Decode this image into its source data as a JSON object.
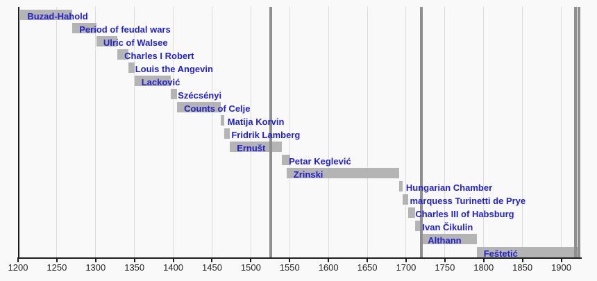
{
  "chart_data": {
    "type": "bar",
    "subtype": "horizontal-timeline-gantt",
    "title": "",
    "xlabel": "",
    "ylabel": "",
    "grid": true,
    "legend": "none",
    "axis": {
      "min": 1200,
      "max": 1925,
      "tick_step": 50,
      "tick_values": [
        1200,
        1250,
        1300,
        1350,
        1400,
        1450,
        1500,
        1550,
        1600,
        1650,
        1700,
        1750,
        1800,
        1850,
        1900
      ],
      "tick_labels": [
        "1200",
        "1250",
        "1300",
        "1350",
        "1400",
        "1450",
        "1500",
        "1550",
        "1600",
        "1650",
        "1700",
        "1750",
        "1800",
        "1850",
        "1900"
      ]
    },
    "rows": [
      {
        "label": "Buzad-Hahold",
        "from": 1203,
        "till": 1270
      },
      {
        "label": "Period of feudal wars",
        "from": 1270,
        "till": 1301
      },
      {
        "label": "Ulric of Walsee",
        "from": 1301,
        "till": 1328
      },
      {
        "label": "Charles I Robert",
        "from": 1328,
        "till": 1342
      },
      {
        "label": "Louis the Angevin",
        "from": 1342,
        "till": 1350
      },
      {
        "label": "Lacković",
        "from": 1350,
        "till": 1397
      },
      {
        "label": "Szécsényi",
        "from": 1397,
        "till": 1405
      },
      {
        "label": "Counts of Celje",
        "from": 1405,
        "till": 1461
      },
      {
        "label": "Matija Korvin",
        "from": 1461,
        "till": 1466
      },
      {
        "label": "Fridrik Lamberg",
        "from": 1466,
        "till": 1473
      },
      {
        "label": "Ernušt",
        "from": 1473,
        "till": 1540
      },
      {
        "label": "Petar Keglević",
        "from": 1540,
        "till": 1551
      },
      {
        "label": "Zrinski",
        "from": 1546,
        "till": 1691
      },
      {
        "label": "Hungarian Chamber",
        "from": 1691,
        "till": 1696
      },
      {
        "label": "marquess Turinetti de Prye",
        "from": 1696,
        "till": 1703
      },
      {
        "label": "Charles III of Habsburg",
        "from": 1703,
        "till": 1712
      },
      {
        "label": "Ivan Čikulin",
        "from": 1712,
        "till": 1719
      },
      {
        "label": "Althann",
        "from": 1719,
        "till": 1791
      },
      {
        "label": "Feštetić",
        "from": 1791,
        "till": 1923
      }
    ],
    "event_lines": [
      1526,
      1720,
      1918,
      1923
    ],
    "colors": {
      "background": "#f9f9f9",
      "bar": "#b4b4b4",
      "bar_label": "#2222cc",
      "gridline": "#dcdcdc",
      "event_line": "#8f8f8f",
      "axis": "#1c1c1c",
      "tick_label": "#222222"
    }
  }
}
